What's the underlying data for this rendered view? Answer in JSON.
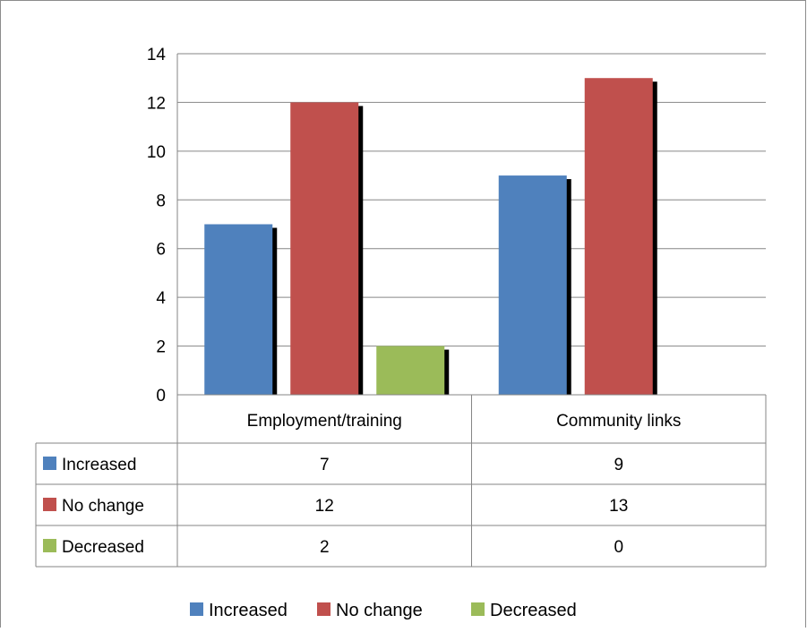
{
  "chart_data": {
    "type": "bar",
    "title": "",
    "xlabel": "",
    "ylabel": "",
    "categories": [
      "Employment/training",
      "Community links"
    ],
    "series": [
      {
        "name": "Increased",
        "values": [
          7,
          9
        ],
        "color": "#4F81BD"
      },
      {
        "name": "No change",
        "values": [
          12,
          13
        ],
        "color": "#C0504D"
      },
      {
        "name": "Decreased",
        "values": [
          2,
          0
        ],
        "color": "#9BBB59"
      }
    ],
    "ylim": [
      0,
      14
    ],
    "yticks": [
      0,
      2,
      4,
      6,
      8,
      10,
      12,
      14
    ],
    "grid": true,
    "data_table": true,
    "legend_position": "bottom"
  }
}
